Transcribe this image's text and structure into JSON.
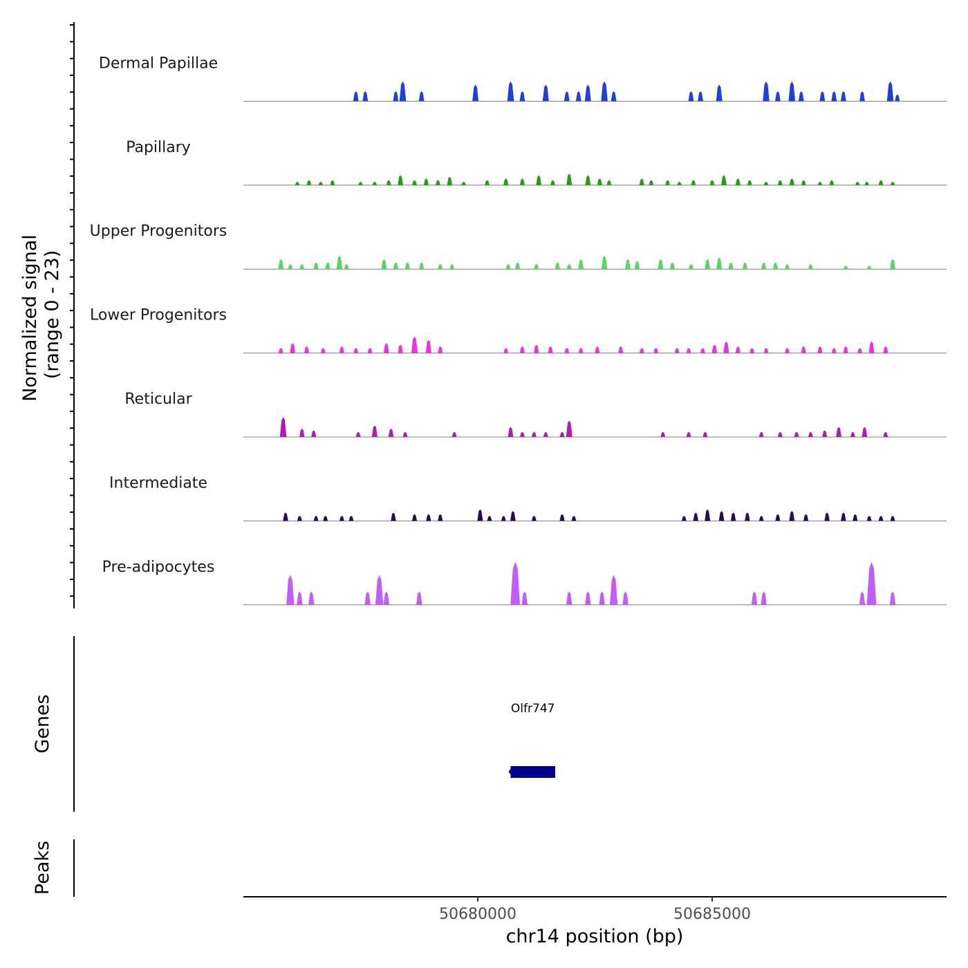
{
  "chart_data": {
    "type": "coverage",
    "chromosome": "chr14",
    "x_range": [
      50675000,
      50690000
    ],
    "y_range": [
      0,
      23
    ],
    "y_axis_title_line1": "Normalized signal",
    "y_axis_title_line2": "(range 0 - 23)",
    "x_axis_title": "chr14 position (bp)",
    "x_ticks": [
      {
        "value": 50680000,
        "label": "50680000"
      },
      {
        "value": 50685000,
        "label": "50685000"
      }
    ],
    "tracks": [
      {
        "name": "Dermal Papillae",
        "color": "#1f3fe0",
        "peaks": [
          [
            50677400,
            3
          ],
          [
            50677600,
            3
          ],
          [
            50678250,
            3
          ],
          [
            50678400,
            6
          ],
          [
            50678800,
            3
          ],
          [
            50679950,
            5
          ],
          [
            50680700,
            6
          ],
          [
            50680950,
            3
          ],
          [
            50681450,
            5
          ],
          [
            50681900,
            3
          ],
          [
            50682150,
            3
          ],
          [
            50682350,
            5
          ],
          [
            50682700,
            6
          ],
          [
            50682900,
            3
          ],
          [
            50684550,
            3
          ],
          [
            50684750,
            3
          ],
          [
            50685150,
            5
          ],
          [
            50686150,
            6
          ],
          [
            50686400,
            3
          ],
          [
            50686700,
            6
          ],
          [
            50686900,
            3
          ],
          [
            50687350,
            3
          ],
          [
            50687600,
            3
          ],
          [
            50687800,
            3
          ],
          [
            50688200,
            3
          ],
          [
            50688800,
            6
          ],
          [
            50688950,
            2
          ]
        ]
      },
      {
        "name": "Papillary",
        "color": "#1ea20d",
        "peaks": [
          [
            50676150,
            1
          ],
          [
            50676400,
            1.5
          ],
          [
            50676650,
            1
          ],
          [
            50676900,
            1.5
          ],
          [
            50677500,
            1
          ],
          [
            50677800,
            1
          ],
          [
            50678100,
            1.5
          ],
          [
            50678350,
            3
          ],
          [
            50678650,
            1.5
          ],
          [
            50678900,
            2
          ],
          [
            50679150,
            1.5
          ],
          [
            50679400,
            2.5
          ],
          [
            50679700,
            1
          ],
          [
            50680200,
            1.5
          ],
          [
            50680600,
            2
          ],
          [
            50680950,
            2
          ],
          [
            50681300,
            3
          ],
          [
            50681600,
            1.5
          ],
          [
            50681950,
            3.5
          ],
          [
            50682350,
            3
          ],
          [
            50682600,
            2
          ],
          [
            50682800,
            1.5
          ],
          [
            50683500,
            2
          ],
          [
            50683700,
            1.5
          ],
          [
            50684050,
            1.5
          ],
          [
            50684300,
            1
          ],
          [
            50684600,
            1.5
          ],
          [
            50685000,
            1.5
          ],
          [
            50685250,
            3
          ],
          [
            50685550,
            2
          ],
          [
            50685800,
            1.5
          ],
          [
            50686150,
            1
          ],
          [
            50686450,
            1.5
          ],
          [
            50686700,
            2
          ],
          [
            50686950,
            1.5
          ],
          [
            50687300,
            1
          ],
          [
            50687550,
            1.5
          ],
          [
            50688100,
            1
          ],
          [
            50688300,
            1
          ],
          [
            50688600,
            1.5
          ],
          [
            50688850,
            1
          ]
        ]
      },
      {
        "name": "Upper Progenitors",
        "color": "#56d85f",
        "peaks": [
          [
            50675800,
            3
          ],
          [
            50676000,
            1.5
          ],
          [
            50676250,
            1.5
          ],
          [
            50676550,
            2
          ],
          [
            50676800,
            2
          ],
          [
            50677050,
            4
          ],
          [
            50677200,
            1.5
          ],
          [
            50678000,
            3
          ],
          [
            50678250,
            2
          ],
          [
            50678500,
            2
          ],
          [
            50678800,
            2
          ],
          [
            50679200,
            1.5
          ],
          [
            50679450,
            1.5
          ],
          [
            50680650,
            1.5
          ],
          [
            50680850,
            2
          ],
          [
            50681250,
            1.5
          ],
          [
            50681700,
            2
          ],
          [
            50681950,
            1.5
          ],
          [
            50682200,
            3
          ],
          [
            50682700,
            4
          ],
          [
            50683200,
            3
          ],
          [
            50683400,
            2.5
          ],
          [
            50683900,
            3
          ],
          [
            50684150,
            2
          ],
          [
            50684550,
            1.5
          ],
          [
            50684900,
            3
          ],
          [
            50685150,
            3.5
          ],
          [
            50685400,
            2
          ],
          [
            50685700,
            2
          ],
          [
            50686100,
            2
          ],
          [
            50686350,
            2
          ],
          [
            50686600,
            1.5
          ],
          [
            50687100,
            1.5
          ],
          [
            50687850,
            1
          ],
          [
            50688350,
            1
          ],
          [
            50688850,
            3
          ]
        ]
      },
      {
        "name": "Lower Progenitors",
        "color": "#ef30e6",
        "peaks": [
          [
            50675800,
            1.5
          ],
          [
            50676050,
            3
          ],
          [
            50676350,
            2
          ],
          [
            50676700,
            1.5
          ],
          [
            50677100,
            2
          ],
          [
            50677400,
            1.5
          ],
          [
            50677700,
            1.5
          ],
          [
            50678050,
            3
          ],
          [
            50678350,
            2.5
          ],
          [
            50678650,
            5
          ],
          [
            50678950,
            4
          ],
          [
            50679200,
            2
          ],
          [
            50680600,
            1.5
          ],
          [
            50680950,
            2
          ],
          [
            50681250,
            2.5
          ],
          [
            50681550,
            2
          ],
          [
            50681900,
            1.5
          ],
          [
            50682200,
            1.5
          ],
          [
            50682550,
            2
          ],
          [
            50683050,
            2
          ],
          [
            50683500,
            1.5
          ],
          [
            50683800,
            1.5
          ],
          [
            50684250,
            1.5
          ],
          [
            50684500,
            1.5
          ],
          [
            50684800,
            1.5
          ],
          [
            50685050,
            2.5
          ],
          [
            50685300,
            3.5
          ],
          [
            50685550,
            2
          ],
          [
            50685850,
            1.5
          ],
          [
            50686150,
            1.5
          ],
          [
            50686600,
            1.5
          ],
          [
            50686950,
            2
          ],
          [
            50687300,
            2
          ],
          [
            50687600,
            1.5
          ],
          [
            50687850,
            2
          ],
          [
            50688150,
            1.5
          ],
          [
            50688400,
            3.5
          ],
          [
            50688700,
            2
          ]
        ]
      },
      {
        "name": "Reticular",
        "color": "#b01cb0",
        "peaks": [
          [
            50675850,
            6
          ],
          [
            50676250,
            2.5
          ],
          [
            50676500,
            2
          ],
          [
            50677450,
            1.5
          ],
          [
            50677800,
            3.5
          ],
          [
            50678150,
            2.5
          ],
          [
            50678450,
            1.5
          ],
          [
            50679500,
            1.5
          ],
          [
            50680700,
            3
          ],
          [
            50680950,
            1.5
          ],
          [
            50681200,
            1.5
          ],
          [
            50681450,
            1.5
          ],
          [
            50681800,
            1.5
          ],
          [
            50681950,
            5
          ],
          [
            50683950,
            1.5
          ],
          [
            50684500,
            1.5
          ],
          [
            50684850,
            1.5
          ],
          [
            50686050,
            1.5
          ],
          [
            50686450,
            1.5
          ],
          [
            50686800,
            1.5
          ],
          [
            50687100,
            1.5
          ],
          [
            50687400,
            2
          ],
          [
            50687700,
            3
          ],
          [
            50688000,
            1.5
          ],
          [
            50688250,
            3
          ],
          [
            50688700,
            1.5
          ]
        ]
      },
      {
        "name": "Intermediate",
        "color": "#2d0c54",
        "peaks": [
          [
            50675900,
            2.5
          ],
          [
            50676200,
            1.5
          ],
          [
            50676550,
            1.5
          ],
          [
            50676750,
            1.5
          ],
          [
            50677100,
            1.5
          ],
          [
            50677300,
            1.5
          ],
          [
            50678200,
            2.5
          ],
          [
            50678650,
            2
          ],
          [
            50678950,
            2
          ],
          [
            50679200,
            2
          ],
          [
            50680050,
            3.5
          ],
          [
            50680250,
            1.5
          ],
          [
            50680550,
            1.5
          ],
          [
            50680750,
            3
          ],
          [
            50681200,
            1.5
          ],
          [
            50681800,
            2
          ],
          [
            50682050,
            1.5
          ],
          [
            50684400,
            1.5
          ],
          [
            50684650,
            2.5
          ],
          [
            50684900,
            3.5
          ],
          [
            50685200,
            3
          ],
          [
            50685450,
            2.5
          ],
          [
            50685750,
            2.5
          ],
          [
            50686050,
            1.5
          ],
          [
            50686400,
            2
          ],
          [
            50686700,
            3
          ],
          [
            50687000,
            2
          ],
          [
            50687450,
            2.5
          ],
          [
            50687800,
            2.5
          ],
          [
            50688050,
            2
          ],
          [
            50688350,
            1.5
          ],
          [
            50688600,
            1.5
          ],
          [
            50688850,
            1.5
          ]
        ]
      },
      {
        "name": "Pre-adipocytes",
        "color": "#c25ef5",
        "peaks": [
          [
            50676000,
            9
          ],
          [
            50676200,
            4
          ],
          [
            50676450,
            4
          ],
          [
            50677650,
            4
          ],
          [
            50677900,
            9
          ],
          [
            50678050,
            4
          ],
          [
            50678750,
            4
          ],
          [
            50680800,
            13
          ],
          [
            50681000,
            4
          ],
          [
            50681950,
            4
          ],
          [
            50682350,
            4
          ],
          [
            50682650,
            4
          ],
          [
            50682900,
            9
          ],
          [
            50683150,
            4
          ],
          [
            50685900,
            4
          ],
          [
            50686100,
            4
          ],
          [
            50688200,
            4
          ],
          [
            50688400,
            13
          ],
          [
            50688850,
            4
          ]
        ]
      }
    ],
    "genes": [
      {
        "name": "Olfr747",
        "start": 50680700,
        "end": 50681650
      }
    ],
    "genes_track_title": "Genes",
    "peaks_track_title": "Peaks"
  }
}
